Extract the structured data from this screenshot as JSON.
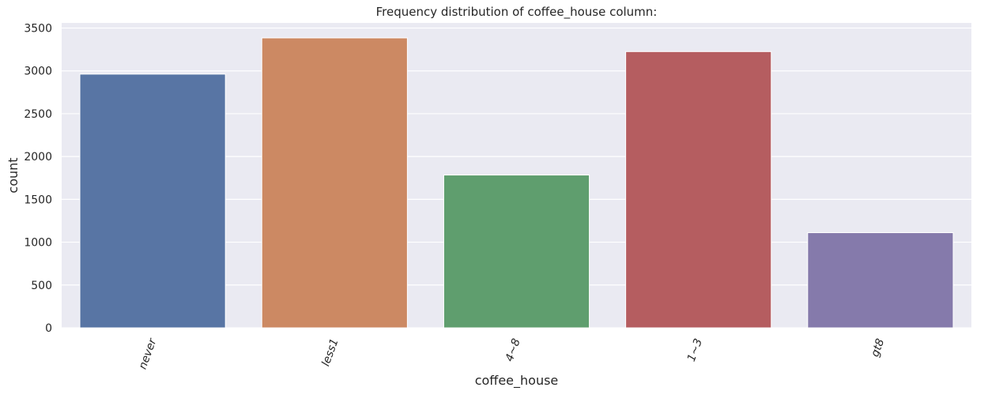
{
  "chart_data": {
    "type": "bar",
    "title": "Frequency distribution of coffee_house column:",
    "xlabel": "coffee_house",
    "ylabel": "count",
    "categories": [
      "never",
      "less1",
      "4~8",
      "1~3",
      "gt8"
    ],
    "values": [
      2962,
      3385,
      1784,
      3225,
      1111
    ],
    "colors": [
      "#5875a4",
      "#cc8963",
      "#5f9e6e",
      "#b55d60",
      "#857aab"
    ],
    "ylim": [
      0,
      3560
    ],
    "yticks": [
      0,
      500,
      1000,
      1500,
      2000,
      2500,
      3000,
      3500
    ],
    "x_tick_rotation": "70deg",
    "background": "#eaeaf2",
    "grid": true,
    "legend": "none"
  }
}
